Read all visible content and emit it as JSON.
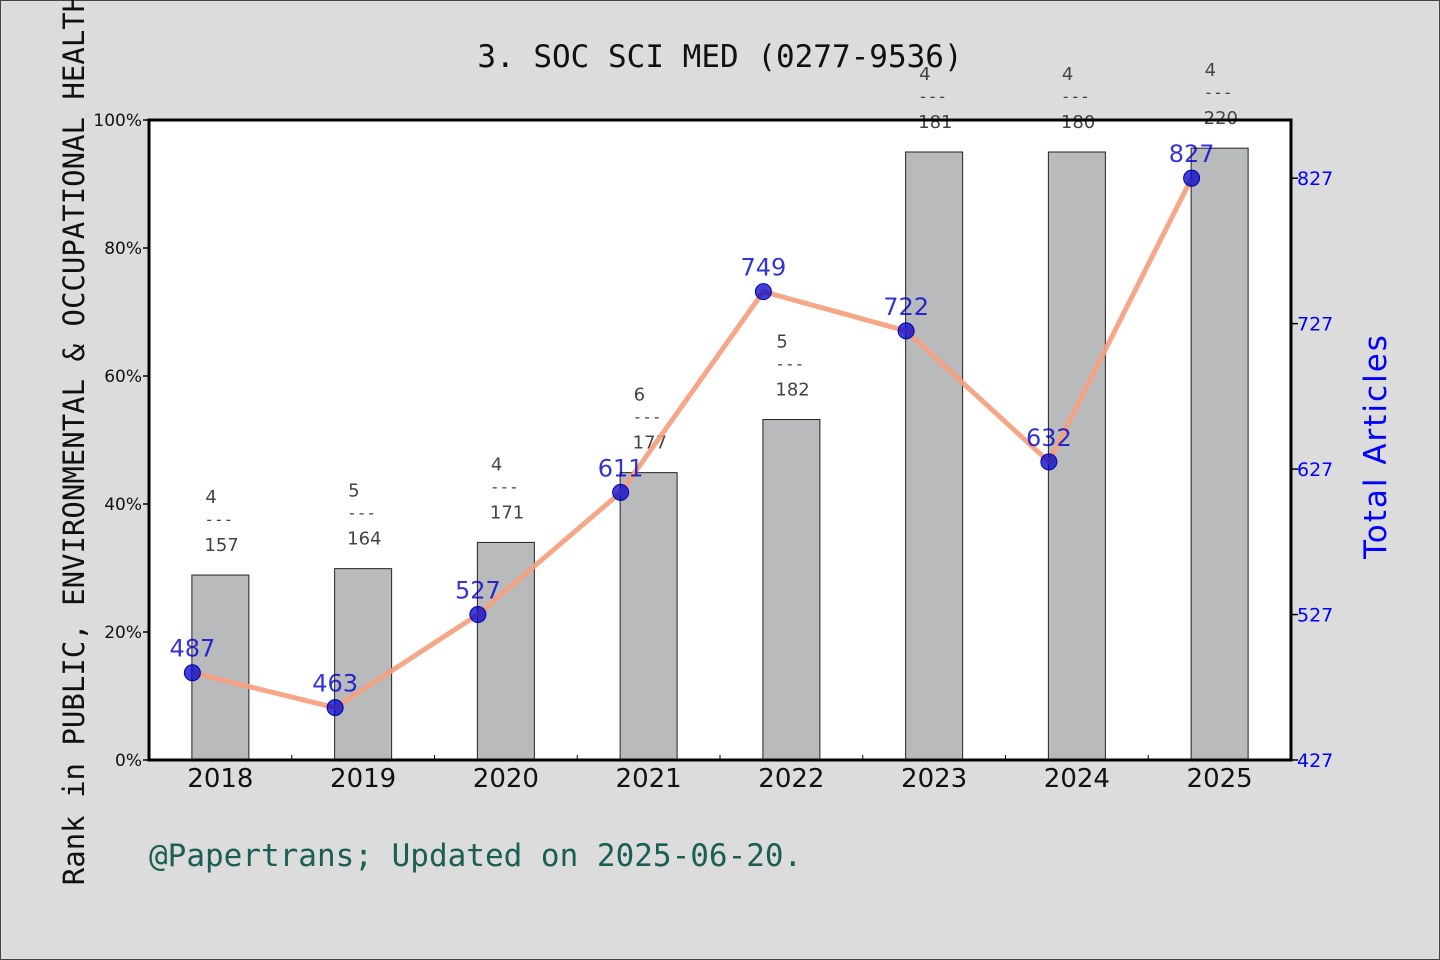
{
  "chart_data": {
    "type": "bar",
    "title": "3. SOC SCI MED (0277-9536)",
    "ylabel_left": "Rank in PUBLIC, ENVIRONMENTAL & OCCUPATIONAL HEALTH",
    "ylabel_right": "Total Articles",
    "footer": "@Papertrans; Updated on 2025-06-20.",
    "categories": [
      "2018",
      "2019",
      "2020",
      "2021",
      "2022",
      "2023",
      "2024",
      "2025"
    ],
    "left_axis": {
      "ylim": [
        0,
        100
      ],
      "ticks": [
        "0%",
        "20%",
        "40%",
        "60%",
        "80%",
        "100%"
      ]
    },
    "right_axis": {
      "ylim": [
        427,
        867
      ],
      "ticks": [
        "427",
        "527",
        "627",
        "727",
        "827"
      ]
    },
    "series": [
      {
        "kind": "bar",
        "values": [
          28.9,
          29.9,
          34.0,
          44.9,
          53.2,
          95.0,
          95.0,
          95.6
        ],
        "ranks": [
          "4",
          "5",
          "4",
          "6",
          "5",
          "4",
          "4",
          "4"
        ],
        "totals": [
          "157",
          "164",
          "171",
          "177",
          "182",
          "181",
          "180",
          "220"
        ],
        "color": "#b9babc"
      },
      {
        "kind": "line",
        "values": [
          487,
          463,
          527,
          611,
          749,
          722,
          632,
          827
        ],
        "labels": [
          "487",
          "463",
          "527",
          "611",
          "749",
          "722",
          "632",
          "827"
        ],
        "color": "#f4a07e",
        "marker_color": "#0000cc"
      }
    ],
    "colors": {
      "footer": "#1a5e55",
      "right_axis": "#0000ff",
      "frame": "#000000"
    }
  }
}
